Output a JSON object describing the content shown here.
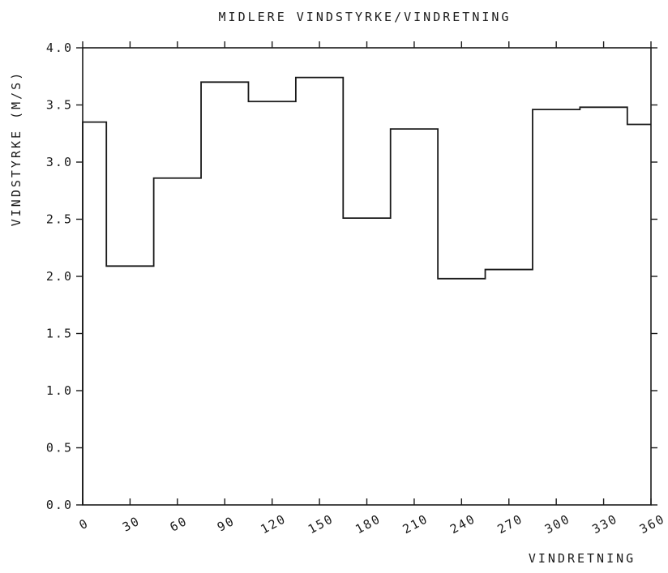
{
  "chart_data": {
    "type": "line",
    "title": "MIDLERE VINDSTYRKE/VINDRETNING",
    "xlabel": "VINDRETNING",
    "ylabel": "VINDSTYRKE (M/S)",
    "xlim": [
      0,
      360
    ],
    "ylim": [
      0.0,
      4.0
    ],
    "x_ticks": [
      "0",
      "30",
      "60",
      "90",
      "120",
      "150",
      "180",
      "210",
      "240",
      "270",
      "300",
      "330",
      "360"
    ],
    "y_ticks": [
      "0.0",
      "0.5",
      "1.0",
      "1.5",
      "2.0",
      "2.5",
      "3.0",
      "3.5",
      "4.0"
    ],
    "grid": false,
    "series": [
      {
        "bins": [
          {
            "from": 0,
            "to": 15,
            "value": 3.35
          },
          {
            "from": 15,
            "to": 45,
            "value": 2.09
          },
          {
            "from": 45,
            "to": 75,
            "value": 2.86
          },
          {
            "from": 75,
            "to": 105,
            "value": 3.7
          },
          {
            "from": 105,
            "to": 135,
            "value": 3.53
          },
          {
            "from": 135,
            "to": 165,
            "value": 3.74
          },
          {
            "from": 165,
            "to": 195,
            "value": 2.51
          },
          {
            "from": 195,
            "to": 225,
            "value": 3.29
          },
          {
            "from": 225,
            "to": 255,
            "value": 1.98
          },
          {
            "from": 255,
            "to": 285,
            "value": 2.06
          },
          {
            "from": 285,
            "to": 315,
            "value": 3.46
          },
          {
            "from": 315,
            "to": 345,
            "value": 3.48
          },
          {
            "from": 345,
            "to": 360,
            "value": 3.33
          }
        ]
      }
    ],
    "colors": {
      "line": "#1a1a1a"
    }
  }
}
